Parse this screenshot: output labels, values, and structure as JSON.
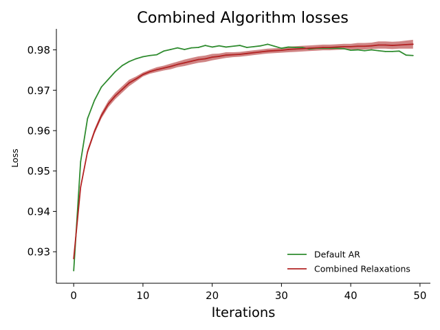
{
  "chart_data": {
    "type": "line",
    "title": "Combined Algorithm losses",
    "xlabel": "Iterations",
    "ylabel": "Loss",
    "xlim": [
      -2.5,
      51.5
    ],
    "ylim": [
      0.9222,
      0.9852
    ],
    "xticks": [
      0,
      10,
      20,
      30,
      40,
      50
    ],
    "xtick_labels": [
      "0",
      "10",
      "20",
      "30",
      "40",
      "50"
    ],
    "yticks": [
      0.93,
      0.94,
      0.95,
      0.96,
      0.97,
      0.98
    ],
    "ytick_labels": [
      "0.93",
      "0.94",
      "0.95",
      "0.96",
      "0.97",
      "0.98"
    ],
    "grid": false,
    "legend_position": "lower-right",
    "x": [
      0,
      1,
      2,
      3,
      4,
      5,
      6,
      7,
      8,
      9,
      10,
      11,
      12,
      13,
      14,
      15,
      16,
      17,
      18,
      19,
      20,
      21,
      22,
      23,
      24,
      25,
      26,
      27,
      28,
      29,
      30,
      31,
      32,
      33,
      34,
      35,
      36,
      37,
      38,
      39,
      40,
      41,
      42,
      43,
      44,
      45,
      46,
      47,
      48,
      49
    ],
    "series": [
      {
        "name": "Default AR",
        "color": "#2e8b2e",
        "values": [
          0.9253,
          0.9523,
          0.963,
          0.9675,
          0.9708,
          0.9727,
          0.9746,
          0.9761,
          0.9771,
          0.9778,
          0.9783,
          0.9786,
          0.9788,
          0.9797,
          0.9801,
          0.9805,
          0.9801,
          0.9805,
          0.9806,
          0.9811,
          0.9807,
          0.981,
          0.9807,
          0.9809,
          0.9811,
          0.9806,
          0.9808,
          0.981,
          0.9814,
          0.9809,
          0.9804,
          0.9807,
          0.9806,
          0.9806,
          0.9802,
          0.9804,
          0.9804,
          0.9804,
          0.9804,
          0.9803,
          0.9799,
          0.98,
          0.9798,
          0.98,
          0.9798,
          0.9796,
          0.9796,
          0.9797,
          0.9787,
          0.9786
        ]
      },
      {
        "name": "Combined Relaxations",
        "color": "#b22222",
        "band_color": "#c87070",
        "values": [
          0.9283,
          0.946,
          0.9548,
          0.9598,
          0.9637,
          0.9666,
          0.9686,
          0.9702,
          0.9718,
          0.9728,
          0.9739,
          0.9746,
          0.9751,
          0.9755,
          0.9759,
          0.9764,
          0.9768,
          0.9772,
          0.9776,
          0.9778,
          0.9782,
          0.9784,
          0.9787,
          0.9788,
          0.9789,
          0.9791,
          0.9793,
          0.9795,
          0.9797,
          0.9798,
          0.9799,
          0.9801,
          0.9802,
          0.9803,
          0.9804,
          0.9805,
          0.9806,
          0.9806,
          0.9807,
          0.9808,
          0.9808,
          0.9809,
          0.9809,
          0.981,
          0.9812,
          0.9812,
          0.9811,
          0.9812,
          0.9813,
          0.9814
        ],
        "lower": [
          0.9278,
          0.9454,
          0.9542,
          0.9592,
          0.963,
          0.9658,
          0.9678,
          0.9694,
          0.971,
          0.9722,
          0.9734,
          0.9741,
          0.9745,
          0.9749,
          0.9752,
          0.9757,
          0.976,
          0.9764,
          0.9768,
          0.977,
          0.9774,
          0.9777,
          0.978,
          0.9782,
          0.9783,
          0.9785,
          0.9787,
          0.9789,
          0.9791,
          0.9792,
          0.9793,
          0.9794,
          0.9795,
          0.9796,
          0.9797,
          0.9798,
          0.9799,
          0.9799,
          0.98,
          0.9801,
          0.9801,
          0.9801,
          0.9801,
          0.9802,
          0.9803,
          0.9803,
          0.9802,
          0.9803,
          0.9803,
          0.9803
        ],
        "upper": [
          0.9288,
          0.9466,
          0.9554,
          0.9604,
          0.9644,
          0.9674,
          0.9694,
          0.971,
          0.9726,
          0.9734,
          0.9744,
          0.9751,
          0.9757,
          0.9761,
          0.9766,
          0.9771,
          0.9776,
          0.978,
          0.9784,
          0.9786,
          0.979,
          0.9791,
          0.9794,
          0.9794,
          0.9795,
          0.9797,
          0.9799,
          0.9801,
          0.9803,
          0.9804,
          0.9805,
          0.9808,
          0.9809,
          0.981,
          0.9811,
          0.9812,
          0.9813,
          0.9813,
          0.9814,
          0.9815,
          0.9815,
          0.9817,
          0.9817,
          0.9818,
          0.9821,
          0.9821,
          0.982,
          0.9821,
          0.9823,
          0.9825
        ]
      }
    ]
  }
}
